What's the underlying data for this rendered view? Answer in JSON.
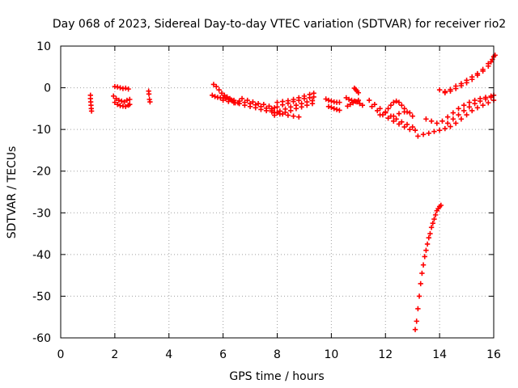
{
  "chart_data": {
    "type": "scatter",
    "title": "Day 068 of 2023, Sidereal Day-to-day VTEC variation (SDTVAR) for receiver rio2",
    "xlabel": "GPS time / hours",
    "ylabel": "SDTVAR / TECUs",
    "xlim": [
      0,
      16
    ],
    "ylim": [
      -60,
      10
    ],
    "xticks": [
      0,
      2,
      4,
      6,
      8,
      10,
      12,
      14,
      16
    ],
    "xtick_labels": [
      "0",
      "2",
      "4",
      "6",
      "8",
      "10",
      "12",
      "14",
      "16"
    ],
    "yticks": [
      -60,
      -50,
      -40,
      -30,
      -20,
      -10,
      0,
      10
    ],
    "ytick_labels": [
      "-60",
      "-50",
      "-40",
      "-30",
      "-20",
      "-10",
      "0",
      "10"
    ],
    "grid": true,
    "legend": "none",
    "marker": "plus",
    "color": "#ff0000",
    "series": [
      {
        "name": "a",
        "points": [
          [
            1.1,
            -1.8
          ],
          [
            1.1,
            -2.6
          ],
          [
            1.11,
            -3.4
          ],
          [
            1.12,
            -4.2
          ],
          [
            1.13,
            -5.0
          ],
          [
            1.14,
            -5.6
          ]
        ]
      },
      {
        "name": "b",
        "points": [
          [
            2.0,
            0.3
          ],
          [
            2.1,
            0.2
          ],
          [
            2.2,
            0.0
          ],
          [
            2.3,
            -0.2
          ],
          [
            2.4,
            -0.1
          ],
          [
            2.5,
            -0.3
          ]
        ]
      },
      {
        "name": "c",
        "points": [
          [
            1.95,
            -2.0
          ],
          [
            2.05,
            -2.6
          ],
          [
            2.15,
            -3.0
          ],
          [
            2.25,
            -3.2
          ],
          [
            2.35,
            -3.4
          ],
          [
            2.45,
            -3.0
          ],
          [
            2.55,
            -2.8
          ]
        ]
      },
      {
        "name": "d",
        "points": [
          [
            2.0,
            -3.5
          ],
          [
            2.1,
            -4.0
          ],
          [
            2.2,
            -4.3
          ],
          [
            2.3,
            -4.4
          ],
          [
            2.4,
            -4.5
          ],
          [
            2.5,
            -4.2
          ],
          [
            2.55,
            -4.0
          ]
        ]
      },
      {
        "name": "e",
        "points": [
          [
            3.25,
            -0.8
          ],
          [
            3.26,
            -1.5
          ],
          [
            3.28,
            -2.8
          ],
          [
            3.3,
            -3.4
          ]
        ]
      },
      {
        "name": "f",
        "points": [
          [
            5.65,
            0.8
          ],
          [
            5.75,
            0.3
          ],
          [
            5.85,
            -0.5
          ],
          [
            5.95,
            -1.3
          ],
          [
            6.05,
            -1.8
          ],
          [
            6.15,
            -2.2
          ],
          [
            6.25,
            -2.6
          ],
          [
            6.35,
            -3.2
          ],
          [
            6.45,
            -3.6
          ],
          [
            6.55,
            -3.6
          ]
        ]
      },
      {
        "name": "g",
        "points": [
          [
            5.6,
            -1.8
          ],
          [
            5.7,
            -2.1
          ],
          [
            5.8,
            -2.3
          ],
          [
            5.9,
            -2.4
          ],
          [
            6.0,
            -2.5
          ],
          [
            6.1,
            -2.6
          ],
          [
            6.2,
            -2.8
          ],
          [
            6.3,
            -2.9
          ],
          [
            6.4,
            -3.0
          ]
        ]
      },
      {
        "name": "h",
        "points": [
          [
            6.0,
            -3.0
          ],
          [
            6.2,
            -3.3
          ],
          [
            6.4,
            -3.6
          ],
          [
            6.6,
            -3.8
          ],
          [
            6.8,
            -4.2
          ],
          [
            7.0,
            -4.5
          ],
          [
            7.2,
            -4.8
          ],
          [
            7.4,
            -5.2
          ],
          [
            7.6,
            -5.5
          ],
          [
            7.8,
            -5.8
          ],
          [
            8.0,
            -6.0
          ]
        ]
      },
      {
        "name": "i",
        "points": [
          [
            6.6,
            -3.2
          ],
          [
            6.8,
            -3.5
          ],
          [
            7.0,
            -3.8
          ],
          [
            7.2,
            -4.1
          ],
          [
            7.4,
            -4.5
          ],
          [
            7.6,
            -4.9
          ],
          [
            7.8,
            -5.4
          ],
          [
            8.0,
            -5.9
          ],
          [
            8.2,
            -6.3
          ],
          [
            8.4,
            -6.6
          ],
          [
            8.6,
            -6.8
          ],
          [
            8.8,
            -7.0
          ]
        ]
      },
      {
        "name": "j",
        "points": [
          [
            6.7,
            -2.6
          ],
          [
            6.9,
            -3.0
          ],
          [
            7.1,
            -3.4
          ],
          [
            7.3,
            -3.8
          ],
          [
            7.5,
            -4.0
          ],
          [
            7.7,
            -4.4
          ],
          [
            7.9,
            -4.8
          ]
        ]
      },
      {
        "name": "k",
        "points": [
          [
            7.8,
            -5.0
          ],
          [
            8.0,
            -4.6
          ],
          [
            8.2,
            -4.1
          ],
          [
            8.4,
            -3.7
          ],
          [
            8.6,
            -3.3
          ],
          [
            8.8,
            -3.0
          ],
          [
            9.0,
            -2.6
          ],
          [
            9.2,
            -2.4
          ],
          [
            9.35,
            -2.2
          ]
        ]
      },
      {
        "name": "l",
        "points": [
          [
            7.9,
            -6.0
          ],
          [
            8.1,
            -5.6
          ],
          [
            8.3,
            -5.1
          ],
          [
            8.5,
            -4.6
          ],
          [
            8.7,
            -4.2
          ],
          [
            8.9,
            -3.8
          ],
          [
            9.1,
            -3.4
          ],
          [
            9.3,
            -3.1
          ]
        ]
      },
      {
        "name": "m",
        "points": [
          [
            8.0,
            -3.5
          ],
          [
            8.2,
            -3.3
          ],
          [
            8.4,
            -3.1
          ],
          [
            8.6,
            -2.8
          ],
          [
            8.8,
            -2.4
          ],
          [
            9.0,
            -2.0
          ],
          [
            9.2,
            -1.6
          ],
          [
            9.35,
            -1.3
          ]
        ]
      },
      {
        "name": "n",
        "points": [
          [
            7.9,
            -6.6
          ],
          [
            8.1,
            -6.3
          ],
          [
            8.3,
            -5.9
          ],
          [
            8.5,
            -5.5
          ],
          [
            8.7,
            -5.0
          ],
          [
            8.9,
            -4.6
          ],
          [
            9.1,
            -4.2
          ],
          [
            9.3,
            -3.8
          ]
        ]
      },
      {
        "name": "o",
        "points": [
          [
            9.8,
            -2.7
          ],
          [
            9.9,
            -3.0
          ],
          [
            10.0,
            -3.2
          ],
          [
            10.1,
            -3.4
          ],
          [
            10.2,
            -3.5
          ],
          [
            10.3,
            -3.5
          ]
        ]
      },
      {
        "name": "p",
        "points": [
          [
            9.9,
            -4.5
          ],
          [
            10.0,
            -4.7
          ],
          [
            10.1,
            -5.0
          ],
          [
            10.2,
            -5.2
          ],
          [
            10.3,
            -5.4
          ]
        ]
      },
      {
        "name": "q",
        "points": [
          [
            10.55,
            -2.4
          ],
          [
            10.65,
            -2.8
          ],
          [
            10.75,
            -3.0
          ],
          [
            10.85,
            -3.2
          ],
          [
            10.95,
            -3.4
          ],
          [
            11.05,
            -3.8
          ],
          [
            11.15,
            -4.2
          ]
        ]
      },
      {
        "name": "r",
        "points": [
          [
            10.6,
            -4.4
          ],
          [
            10.7,
            -4.0
          ],
          [
            10.8,
            -3.6
          ],
          [
            10.9,
            -3.3
          ],
          [
            11.0,
            -3.0
          ]
        ]
      },
      {
        "name": "s",
        "points": [
          [
            10.85,
            -0.1
          ],
          [
            10.9,
            -0.4
          ],
          [
            10.95,
            -0.8
          ],
          [
            11.0,
            -1.2
          ]
        ]
      },
      {
        "name": "t",
        "points": [
          [
            11.4,
            -3.0
          ],
          [
            11.6,
            -4.0
          ],
          [
            11.8,
            -5.0
          ],
          [
            12.0,
            -6.0
          ],
          [
            12.2,
            -6.8
          ],
          [
            12.4,
            -7.5
          ],
          [
            12.6,
            -8.2
          ],
          [
            12.8,
            -8.8
          ],
          [
            13.0,
            -9.4
          ]
        ]
      },
      {
        "name": "u",
        "points": [
          [
            11.5,
            -4.5
          ],
          [
            11.7,
            -5.5
          ],
          [
            11.9,
            -6.5
          ],
          [
            12.1,
            -7.3
          ],
          [
            12.3,
            -8.0
          ],
          [
            12.5,
            -8.7
          ],
          [
            12.7,
            -9.4
          ],
          [
            12.9,
            -10.0
          ],
          [
            13.1,
            -10.2
          ]
        ]
      },
      {
        "name": "v",
        "points": [
          [
            11.8,
            -6.5
          ],
          [
            12.0,
            -5.8
          ],
          [
            12.1,
            -5.0
          ],
          [
            12.2,
            -4.2
          ],
          [
            12.3,
            -3.5
          ],
          [
            12.4,
            -3.2
          ],
          [
            12.5,
            -3.5
          ],
          [
            12.6,
            -4.2
          ],
          [
            12.7,
            -5.0
          ],
          [
            12.8,
            -5.8
          ]
        ]
      },
      {
        "name": "w",
        "points": [
          [
            12.3,
            -6.8
          ],
          [
            12.5,
            -6.2
          ],
          [
            12.7,
            -5.8
          ],
          [
            12.9,
            -6.0
          ],
          [
            13.0,
            -6.8
          ]
        ]
      },
      {
        "name": "x",
        "points": [
          [
            13.2,
            -11.6
          ],
          [
            13.4,
            -11.2
          ],
          [
            13.6,
            -10.9
          ],
          [
            13.8,
            -10.5
          ],
          [
            14.0,
            -10.2
          ],
          [
            14.2,
            -9.8
          ],
          [
            14.4,
            -9.3
          ],
          [
            14.6,
            -8.5
          ],
          [
            14.8,
            -7.5
          ],
          [
            15.0,
            -6.5
          ],
          [
            15.2,
            -5.5
          ],
          [
            15.4,
            -4.8
          ],
          [
            15.6,
            -4.2
          ],
          [
            15.8,
            -3.6
          ],
          [
            16.0,
            -3.0
          ]
        ]
      },
      {
        "name": "y",
        "points": [
          [
            13.5,
            -7.5
          ],
          [
            13.7,
            -8.0
          ],
          [
            13.9,
            -8.5
          ],
          [
            14.1,
            -8.0
          ],
          [
            14.3,
            -7.0
          ],
          [
            14.5,
            -6.0
          ],
          [
            14.7,
            -5.0
          ],
          [
            14.9,
            -4.2
          ],
          [
            15.1,
            -3.5
          ],
          [
            15.3,
            -3.0
          ],
          [
            15.5,
            -2.6
          ],
          [
            15.7,
            -2.3
          ],
          [
            15.9,
            -2.0
          ],
          [
            16.0,
            -1.8
          ]
        ]
      },
      {
        "name": "z",
        "points": [
          [
            14.3,
            -8.5
          ],
          [
            14.5,
            -7.5
          ],
          [
            14.7,
            -6.5
          ],
          [
            14.9,
            -5.5
          ],
          [
            15.1,
            -4.6
          ],
          [
            15.3,
            -3.8
          ],
          [
            15.5,
            -3.2
          ],
          [
            15.7,
            -2.7
          ],
          [
            15.9,
            -2.3
          ]
        ]
      },
      {
        "name": "aa",
        "points": [
          [
            14.0,
            -0.5
          ],
          [
            14.2,
            -0.9
          ],
          [
            14.4,
            -0.8
          ],
          [
            14.6,
            -0.2
          ],
          [
            14.8,
            0.5
          ],
          [
            15.0,
            1.2
          ],
          [
            15.2,
            2.0
          ],
          [
            15.4,
            3.0
          ],
          [
            15.6,
            4.0
          ],
          [
            15.8,
            5.2
          ],
          [
            15.9,
            6.2
          ],
          [
            16.0,
            7.5
          ],
          [
            16.05,
            7.8
          ]
        ]
      },
      {
        "name": "ab",
        "points": [
          [
            14.2,
            -1.2
          ],
          [
            14.4,
            -0.4
          ],
          [
            14.6,
            0.4
          ],
          [
            14.8,
            1.0
          ],
          [
            15.0,
            1.8
          ],
          [
            15.2,
            2.6
          ],
          [
            15.4,
            3.4
          ],
          [
            15.6,
            4.4
          ],
          [
            15.8,
            5.8
          ],
          [
            15.95,
            6.8
          ]
        ]
      },
      {
        "name": "ac",
        "points": [
          [
            13.1,
            -58.0
          ],
          [
            13.15,
            -56.0
          ],
          [
            13.2,
            -53.0
          ],
          [
            13.25,
            -50.0
          ],
          [
            13.3,
            -47.0
          ],
          [
            13.35,
            -44.5
          ],
          [
            13.4,
            -42.5
          ],
          [
            13.45,
            -40.5
          ],
          [
            13.5,
            -39.0
          ],
          [
            13.55,
            -37.5
          ],
          [
            13.6,
            -36.0
          ],
          [
            13.65,
            -35.0
          ],
          [
            13.7,
            -33.5
          ],
          [
            13.75,
            -32.5
          ],
          [
            13.8,
            -31.5
          ],
          [
            13.85,
            -30.5
          ],
          [
            13.9,
            -29.5
          ],
          [
            13.95,
            -29.0
          ],
          [
            14.0,
            -28.5
          ],
          [
            14.05,
            -28.2
          ]
        ]
      }
    ]
  }
}
